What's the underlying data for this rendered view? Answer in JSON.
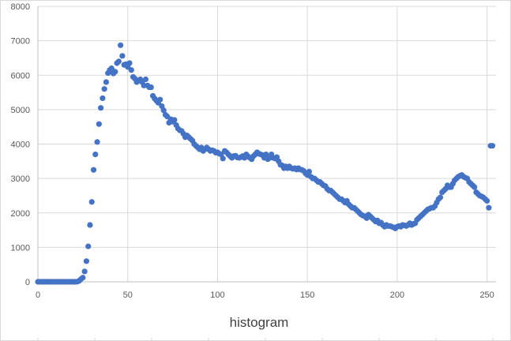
{
  "chart_data": {
    "type": "scatter",
    "title": "",
    "xlabel": "histogram",
    "ylabel": "",
    "xlim": [
      0,
      255
    ],
    "ylim": [
      0,
      8000
    ],
    "x_ticks": [
      0,
      50,
      100,
      150,
      200,
      250
    ],
    "y_ticks": [
      0,
      1000,
      2000,
      3000,
      4000,
      5000,
      6000,
      7000,
      8000
    ],
    "grid": true,
    "legend": "none",
    "marker_color": "#4472C4",
    "series": [
      {
        "points": [
          [
            0,
            0
          ],
          [
            1,
            0
          ],
          [
            2,
            0
          ],
          [
            3,
            0
          ],
          [
            4,
            0
          ],
          [
            5,
            0
          ],
          [
            6,
            0
          ],
          [
            7,
            0
          ],
          [
            8,
            0
          ],
          [
            9,
            0
          ],
          [
            10,
            0
          ],
          [
            11,
            0
          ],
          [
            12,
            0
          ],
          [
            13,
            0
          ],
          [
            14,
            0
          ],
          [
            15,
            0
          ],
          [
            16,
            0
          ],
          [
            17,
            0
          ],
          [
            18,
            0
          ],
          [
            19,
            0
          ],
          [
            20,
            0
          ],
          [
            21,
            0
          ],
          [
            22,
            5
          ],
          [
            23,
            30
          ],
          [
            24,
            80
          ],
          [
            25,
            120
          ],
          [
            26,
            300
          ],
          [
            27,
            600
          ],
          [
            28,
            1030
          ],
          [
            29,
            1650
          ],
          [
            30,
            2320
          ],
          [
            31,
            3250
          ],
          [
            32,
            3700
          ],
          [
            33,
            4060
          ],
          [
            34,
            4580
          ],
          [
            35,
            5050
          ],
          [
            36,
            5330
          ],
          [
            37,
            5600
          ],
          [
            38,
            5800
          ],
          [
            39,
            6060
          ],
          [
            40,
            6150
          ],
          [
            41,
            6200
          ],
          [
            42,
            6050
          ],
          [
            43,
            6100
          ],
          [
            44,
            6350
          ],
          [
            45,
            6400
          ],
          [
            46,
            6870
          ],
          [
            47,
            6560
          ],
          [
            48,
            6300
          ],
          [
            49,
            6320
          ],
          [
            50,
            6240
          ],
          [
            51,
            6350
          ],
          [
            52,
            6150
          ],
          [
            53,
            5950
          ],
          [
            54,
            5900
          ],
          [
            55,
            5800
          ],
          [
            56,
            5850
          ],
          [
            57,
            5880
          ],
          [
            58,
            5800
          ],
          [
            59,
            5700
          ],
          [
            60,
            5880
          ],
          [
            61,
            5700
          ],
          [
            62,
            5650
          ],
          [
            63,
            5650
          ],
          [
            64,
            5400
          ],
          [
            65,
            5320
          ],
          [
            66,
            5260
          ],
          [
            67,
            5200
          ],
          [
            68,
            5290
          ],
          [
            69,
            5100
          ],
          [
            70,
            4980
          ],
          [
            71,
            4850
          ],
          [
            72,
            4800
          ],
          [
            73,
            4620
          ],
          [
            74,
            4720
          ],
          [
            75,
            4650
          ],
          [
            76,
            4700
          ],
          [
            77,
            4550
          ],
          [
            78,
            4450
          ],
          [
            79,
            4400
          ],
          [
            80,
            4380
          ],
          [
            81,
            4300
          ],
          [
            82,
            4200
          ],
          [
            83,
            4250
          ],
          [
            84,
            4200
          ],
          [
            85,
            4150
          ],
          [
            86,
            4100
          ],
          [
            87,
            4000
          ],
          [
            88,
            3950
          ],
          [
            89,
            3900
          ],
          [
            90,
            3850
          ],
          [
            91,
            3900
          ],
          [
            92,
            3800
          ],
          [
            93,
            3850
          ],
          [
            94,
            3900
          ],
          [
            95,
            3850
          ],
          [
            96,
            3800
          ],
          [
            97,
            3820
          ],
          [
            98,
            3800
          ],
          [
            99,
            3750
          ],
          [
            100,
            3760
          ],
          [
            101,
            3720
          ],
          [
            102,
            3700
          ],
          [
            103,
            3580
          ],
          [
            104,
            3800
          ],
          [
            105,
            3760
          ],
          [
            106,
            3700
          ],
          [
            107,
            3650
          ],
          [
            108,
            3600
          ],
          [
            109,
            3650
          ],
          [
            110,
            3660
          ],
          [
            111,
            3610
          ],
          [
            112,
            3600
          ],
          [
            113,
            3620
          ],
          [
            114,
            3650
          ],
          [
            115,
            3600
          ],
          [
            116,
            3700
          ],
          [
            117,
            3640
          ],
          [
            118,
            3600
          ],
          [
            119,
            3560
          ],
          [
            120,
            3650
          ],
          [
            121,
            3700
          ],
          [
            122,
            3760
          ],
          [
            123,
            3720
          ],
          [
            124,
            3700
          ],
          [
            125,
            3680
          ],
          [
            126,
            3600
          ],
          [
            127,
            3700
          ],
          [
            128,
            3560
          ],
          [
            129,
            3600
          ],
          [
            130,
            3700
          ],
          [
            131,
            3600
          ],
          [
            132,
            3580
          ],
          [
            133,
            3620
          ],
          [
            134,
            3500
          ],
          [
            135,
            3400
          ],
          [
            136,
            3380
          ],
          [
            137,
            3300
          ],
          [
            138,
            3350
          ],
          [
            139,
            3300
          ],
          [
            140,
            3350
          ],
          [
            141,
            3300
          ],
          [
            142,
            3280
          ],
          [
            143,
            3300
          ],
          [
            144,
            3260
          ],
          [
            145,
            3300
          ],
          [
            146,
            3260
          ],
          [
            147,
            3250
          ],
          [
            148,
            3220
          ],
          [
            149,
            3150
          ],
          [
            150,
            3100
          ],
          [
            151,
            3200
          ],
          [
            152,
            3050
          ],
          [
            153,
            3000
          ],
          [
            154,
            3000
          ],
          [
            155,
            2950
          ],
          [
            156,
            2900
          ],
          [
            157,
            2900
          ],
          [
            158,
            2850
          ],
          [
            159,
            2800
          ],
          [
            160,
            2780
          ],
          [
            161,
            2700
          ],
          [
            162,
            2650
          ],
          [
            163,
            2650
          ],
          [
            164,
            2600
          ],
          [
            165,
            2550
          ],
          [
            166,
            2500
          ],
          [
            167,
            2450
          ],
          [
            168,
            2400
          ],
          [
            169,
            2400
          ],
          [
            170,
            2350
          ],
          [
            171,
            2300
          ],
          [
            172,
            2350
          ],
          [
            173,
            2250
          ],
          [
            174,
            2200
          ],
          [
            175,
            2150
          ],
          [
            176,
            2150
          ],
          [
            177,
            2100
          ],
          [
            178,
            2050
          ],
          [
            179,
            2000
          ],
          [
            180,
            1950
          ],
          [
            181,
            1920
          ],
          [
            182,
            1900
          ],
          [
            183,
            1850
          ],
          [
            184,
            1950
          ],
          [
            185,
            1900
          ],
          [
            186,
            1850
          ],
          [
            187,
            1800
          ],
          [
            188,
            1750
          ],
          [
            189,
            1780
          ],
          [
            190,
            1700
          ],
          [
            191,
            1720
          ],
          [
            192,
            1650
          ],
          [
            193,
            1600
          ],
          [
            194,
            1650
          ],
          [
            195,
            1620
          ],
          [
            196,
            1620
          ],
          [
            197,
            1600
          ],
          [
            198,
            1580
          ],
          [
            199,
            1550
          ],
          [
            200,
            1600
          ],
          [
            201,
            1620
          ],
          [
            202,
            1600
          ],
          [
            203,
            1650
          ],
          [
            204,
            1640
          ],
          [
            205,
            1620
          ],
          [
            206,
            1650
          ],
          [
            207,
            1700
          ],
          [
            208,
            1650
          ],
          [
            209,
            1680
          ],
          [
            210,
            1700
          ],
          [
            211,
            1800
          ],
          [
            212,
            1850
          ],
          [
            213,
            1900
          ],
          [
            214,
            1950
          ],
          [
            215,
            2000
          ],
          [
            216,
            2050
          ],
          [
            217,
            2100
          ],
          [
            218,
            2120
          ],
          [
            219,
            2150
          ],
          [
            220,
            2150
          ],
          [
            221,
            2200
          ],
          [
            222,
            2300
          ],
          [
            223,
            2400
          ],
          [
            224,
            2450
          ],
          [
            225,
            2600
          ],
          [
            226,
            2650
          ],
          [
            227,
            2700
          ],
          [
            228,
            2800
          ],
          [
            229,
            2750
          ],
          [
            230,
            2750
          ],
          [
            231,
            2850
          ],
          [
            232,
            2950
          ],
          [
            233,
            3000
          ],
          [
            234,
            3050
          ],
          [
            235,
            3080
          ],
          [
            236,
            3100
          ],
          [
            237,
            3050
          ],
          [
            238,
            3020
          ],
          [
            239,
            3000
          ],
          [
            240,
            2900
          ],
          [
            241,
            2850
          ],
          [
            242,
            2800
          ],
          [
            243,
            2750
          ],
          [
            244,
            2600
          ],
          [
            245,
            2550
          ],
          [
            246,
            2500
          ],
          [
            247,
            2480
          ],
          [
            248,
            2450
          ],
          [
            249,
            2400
          ],
          [
            250,
            2350
          ],
          [
            251,
            2150
          ],
          [
            252,
            3950
          ],
          [
            253,
            3950
          ]
        ]
      }
    ]
  }
}
